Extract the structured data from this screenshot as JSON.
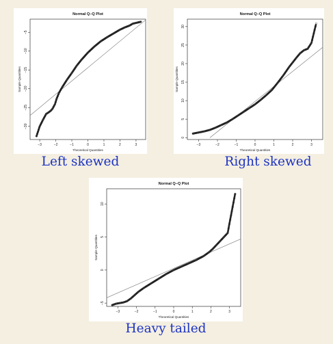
{
  "chart_data": [
    {
      "type": "scatter",
      "id": "left",
      "title": "Normal Q–Q Plot",
      "xlabel": "Theoretical Quantities",
      "ylabel": "Sample Quantities",
      "caption": "Left skewed",
      "xlim": [
        -3.6,
        3.6
      ],
      "ylim": [
        -33.5,
        -1.5
      ],
      "xticks": [
        -3,
        -2,
        -1,
        0,
        1,
        2,
        3
      ],
      "yticks": [
        -30,
        -25,
        -20,
        -15,
        -10,
        -5
      ],
      "reference_line": {
        "x": [
          -3.6,
          3.6
        ],
        "y": [
          -27.1,
          -1.7
        ]
      },
      "points": [
        [
          -3.2,
          -32.6
        ],
        [
          -3.0,
          -30.0
        ],
        [
          -2.8,
          -28.3
        ],
        [
          -2.6,
          -26.7
        ],
        [
          -2.45,
          -26.3
        ],
        [
          -2.3,
          -25.8
        ],
        [
          -2.2,
          -25.3
        ],
        [
          -2.05,
          -24.1
        ],
        [
          -1.95,
          -22.7
        ],
        [
          -1.8,
          -21.1
        ],
        [
          -1.6,
          -19.6
        ],
        [
          -1.3,
          -17.6
        ],
        [
          -1.0,
          -15.8
        ],
        [
          -0.7,
          -13.9
        ],
        [
          -0.4,
          -12.3
        ],
        [
          0.0,
          -10.4
        ],
        [
          0.4,
          -8.8
        ],
        [
          0.8,
          -7.4
        ],
        [
          1.2,
          -6.3
        ],
        [
          1.6,
          -5.3
        ],
        [
          2.0,
          -4.3
        ],
        [
          2.3,
          -3.7
        ],
        [
          2.6,
          -3.2
        ],
        [
          2.8,
          -2.7
        ],
        [
          3.0,
          -2.5
        ],
        [
          3.3,
          -2.2
        ]
      ],
      "colors": {
        "points": "#222222",
        "line": "#888888"
      }
    },
    {
      "type": "scatter",
      "id": "right",
      "title": "Normal Q–Q Plot",
      "xlabel": "Theoretical Quantities",
      "ylabel": "Sample Quantities",
      "caption": "Right skewed",
      "xlim": [
        -3.6,
        3.6
      ],
      "ylim": [
        -0.5,
        32
      ],
      "xticks": [
        -3,
        -2,
        -1,
        0,
        1,
        2,
        3
      ],
      "yticks": [
        0,
        5,
        10,
        15,
        20,
        25,
        30
      ],
      "reference_line": {
        "x": [
          -2.4,
          3.6
        ],
        "y": [
          0,
          24.4
        ]
      },
      "points": [
        [
          -3.3,
          1.1
        ],
        [
          -3.0,
          1.4
        ],
        [
          -2.7,
          1.7
        ],
        [
          -2.4,
          2.1
        ],
        [
          -2.1,
          2.7
        ],
        [
          -1.8,
          3.4
        ],
        [
          -1.5,
          4.1
        ],
        [
          -1.2,
          5.0
        ],
        [
          -0.9,
          6.0
        ],
        [
          -0.6,
          7.0
        ],
        [
          -0.3,
          8.0
        ],
        [
          0.0,
          9.0
        ],
        [
          0.3,
          10.2
        ],
        [
          0.6,
          11.5
        ],
        [
          0.9,
          12.9
        ],
        [
          1.2,
          14.8
        ],
        [
          1.5,
          16.8
        ],
        [
          1.8,
          19.0
        ],
        [
          2.0,
          20.3
        ],
        [
          2.2,
          21.6
        ],
        [
          2.4,
          22.8
        ],
        [
          2.6,
          23.6
        ],
        [
          2.8,
          24.0
        ],
        [
          3.0,
          25.6
        ],
        [
          3.25,
          30.8
        ]
      ],
      "colors": {
        "points": "#222222",
        "line": "#888888"
      }
    },
    {
      "type": "scatter",
      "id": "heavy",
      "title": "Normal Q–Q Plot",
      "xlabel": "Theoretical Quantities",
      "ylabel": "Sample Quantities",
      "caption": "Heavy tailed",
      "xlim": [
        -3.6,
        3.6
      ],
      "ylim": [
        -5.5,
        12.3
      ],
      "xticks": [
        -3,
        -2,
        -1,
        0,
        1,
        2,
        3
      ],
      "yticks": [
        -5,
        0,
        5,
        10
      ],
      "reference_line": {
        "x": [
          -3.6,
          3.6
        ],
        "y": [
          -4.2,
          4.7
        ]
      },
      "points": [
        [
          -3.3,
          -5.3
        ],
        [
          -3.1,
          -5.1
        ],
        [
          -2.9,
          -5.0
        ],
        [
          -2.7,
          -4.9
        ],
        [
          -2.5,
          -4.7
        ],
        [
          -2.3,
          -4.3
        ],
        [
          -2.1,
          -3.8
        ],
        [
          -1.9,
          -3.3
        ],
        [
          -1.6,
          -2.7
        ],
        [
          -1.2,
          -2.0
        ],
        [
          -0.8,
          -1.3
        ],
        [
          -0.4,
          -0.6
        ],
        [
          0.0,
          0.0
        ],
        [
          0.4,
          0.5
        ],
        [
          0.8,
          1.0
        ],
        [
          1.2,
          1.5
        ],
        [
          1.6,
          2.1
        ],
        [
          1.9,
          2.7
        ],
        [
          2.1,
          3.2
        ],
        [
          2.3,
          3.8
        ],
        [
          2.5,
          4.4
        ],
        [
          2.7,
          5.0
        ],
        [
          2.9,
          5.6
        ],
        [
          3.3,
          11.5
        ]
      ],
      "colors": {
        "points": "#222222",
        "line": "#888888"
      }
    }
  ]
}
